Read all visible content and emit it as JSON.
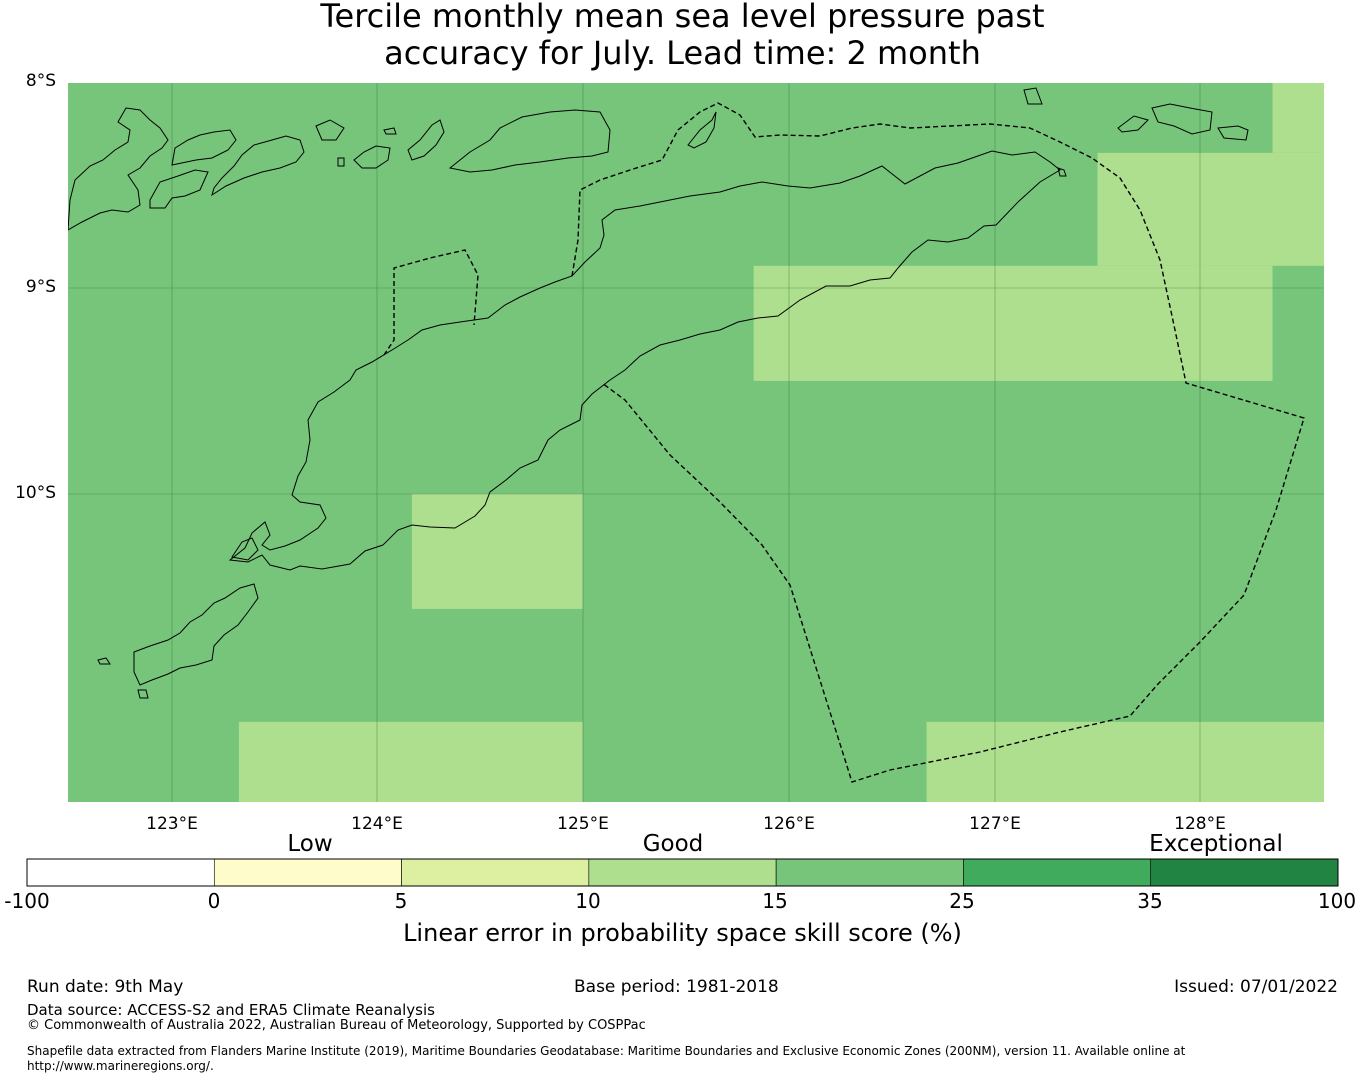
{
  "title": {
    "line1": "Tercile monthly mean sea level pressure past",
    "line2": "accuracy for July. Lead time: 2 month"
  },
  "map": {
    "lat_labels": [
      "8°S",
      "9°S",
      "10°S"
    ],
    "lon_labels": [
      "123°E",
      "124°E",
      "125°E",
      "126°E",
      "127°E",
      "128°E"
    ],
    "lon_range": [
      122.5,
      128.6
    ],
    "lat_range": [
      -11.5,
      -8.0
    ],
    "cells": [
      {
        "lon": [
          122.5,
          128.35
        ],
        "lat": [
          -8.0,
          -8.34
        ],
        "class": "15-25"
      },
      {
        "lon": [
          128.35,
          128.6
        ],
        "lat": [
          -8.0,
          -8.34
        ],
        "class": "10-15"
      },
      {
        "lon": [
          127.5,
          128.6
        ],
        "lat": [
          -8.34,
          -8.89
        ],
        "class": "10-15"
      },
      {
        "lon": [
          125.83,
          128.35
        ],
        "lat": [
          -8.89,
          -9.45
        ],
        "class": "10-15"
      },
      {
        "lon": [
          124.17,
          125.0
        ],
        "lat": [
          -10.0,
          -10.56
        ],
        "class": "10-15"
      },
      {
        "lon": [
          123.33,
          125.0
        ],
        "lat": [
          -11.11,
          -11.5
        ],
        "class": "10-15"
      },
      {
        "lon": [
          126.67,
          128.6
        ],
        "lat": [
          -11.11,
          -11.5
        ],
        "class": "10-15"
      }
    ]
  },
  "colors": {
    "grid_bg": "#77c57a",
    "below_neg": "#ffffff",
    "0-5": "#fefccb",
    "5-10": "#ddf0a1",
    "10-15": "#addf8e",
    "15-25": "#77c57a",
    "25-35": "#41ab5d",
    "35-100": "#228443"
  },
  "colorbar": {
    "categories": [
      "Low",
      "Good",
      "Exceptional"
    ],
    "ticks": [
      "-100",
      "0",
      "5",
      "10",
      "15",
      "25",
      "35",
      "100"
    ],
    "segments": [
      "below_neg",
      "0-5",
      "5-10",
      "10-15",
      "15-25",
      "25-35",
      "35-100"
    ],
    "label": "Linear error in probability space skill score (%)"
  },
  "footer": {
    "run_date": "Run date: 9th May",
    "base_period": "Base period: 1981-2018",
    "issued": "Issued: 07/01/2022",
    "data_source": "Data source: ACCESS-S2 and ERA5 Climate Reanalysis",
    "copyright": "© Commonwealth of Australia 2022, Australian Bureau of Meteorology, Supported by COSPPac",
    "shapefile_line1": "Shapefile data extracted from Flanders Marine Institute (2019), Maritime Boundaries Geodatabase: Maritime Boundaries and Exclusive Economic Zones (200NM), version 11. Available online at",
    "shapefile_line2": "http://www.marineregions.org/."
  }
}
